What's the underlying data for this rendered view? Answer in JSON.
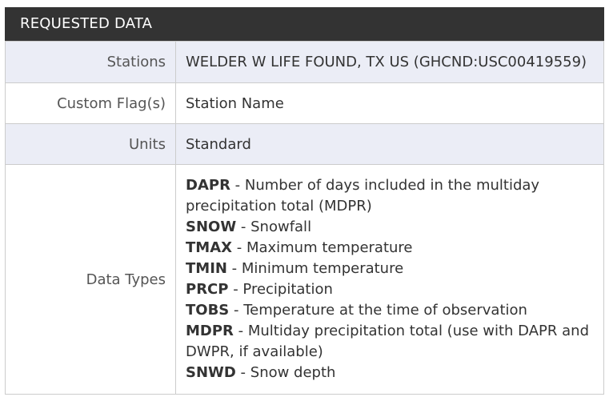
{
  "header": {
    "title": "REQUESTED DATA"
  },
  "rows": {
    "stations": {
      "label": "Stations",
      "value": "WELDER W LIFE FOUND, TX US (GHCND:USC00419559)"
    },
    "custom_flags": {
      "label": "Custom Flag(s)",
      "value": "Station Name"
    },
    "units": {
      "label": "Units",
      "value": "Standard"
    },
    "data_types": {
      "label": "Data Types",
      "items": [
        {
          "code": "DAPR",
          "desc": " - Number of days included in the multiday precipitation total (MDPR)"
        },
        {
          "code": "SNOW",
          "desc": " - Snowfall"
        },
        {
          "code": "TMAX",
          "desc": " - Maximum temperature"
        },
        {
          "code": "TMIN",
          "desc": " - Minimum temperature"
        },
        {
          "code": "PRCP",
          "desc": " - Precipitation"
        },
        {
          "code": "TOBS",
          "desc": " - Temperature at the time of observation"
        },
        {
          "code": "MDPR",
          "desc": " - Multiday precipitation total (use with DAPR and DWPR, if available)"
        },
        {
          "code": "SNWD",
          "desc": " - Snow depth"
        }
      ]
    }
  },
  "colors": {
    "header_bg": "#333333",
    "header_text": "#ffffff",
    "row_shade": "#ebedf6",
    "border": "#cccccc"
  }
}
